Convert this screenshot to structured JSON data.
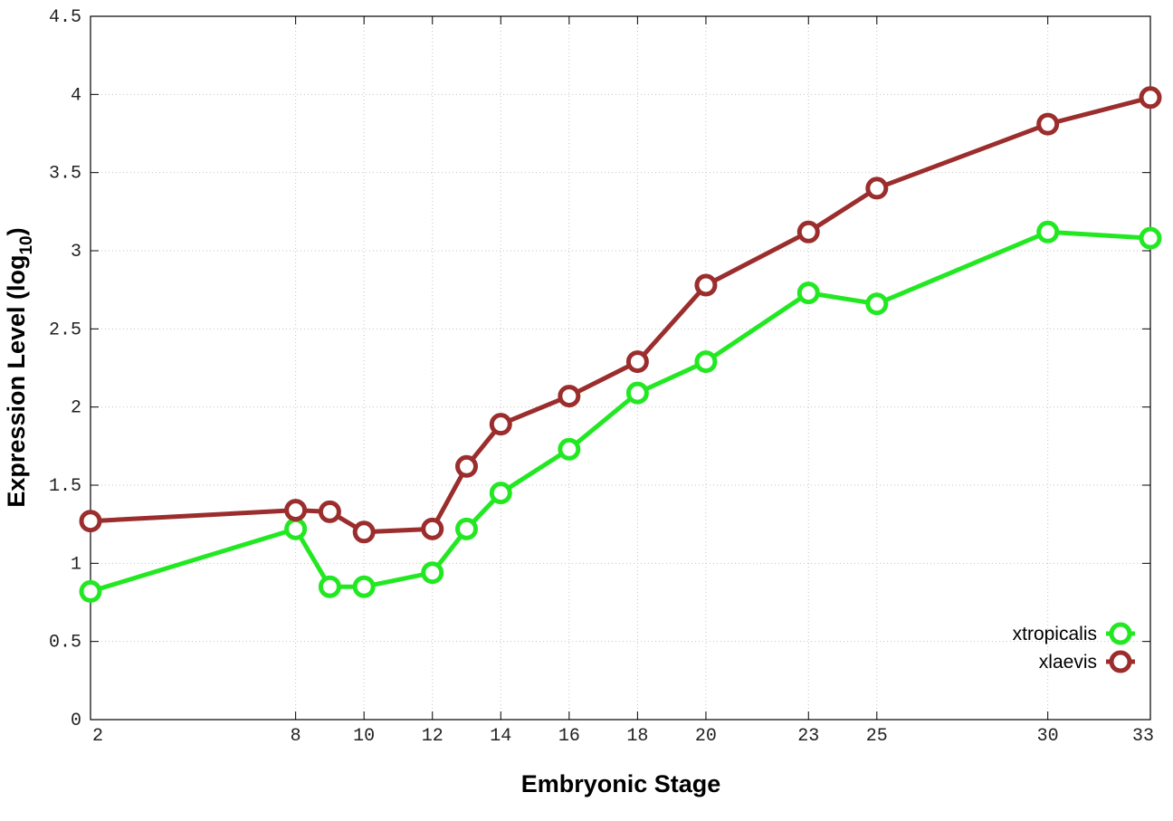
{
  "chart_data": {
    "type": "line",
    "xlabel": "Embryonic Stage",
    "ylabel": "Expression Level (log",
    "ylabel_sub": "10",
    "ylabel_close": ")",
    "x_ticks": [
      "2",
      "8",
      "10",
      "12",
      "14",
      "16",
      "18",
      "20",
      "23",
      "25",
      "30",
      "33"
    ],
    "x": [
      2,
      8,
      9,
      10,
      12,
      13,
      14,
      16,
      18,
      20,
      23,
      25,
      30,
      33
    ],
    "y_ticks": [
      "0",
      "0.5",
      "1",
      "1.5",
      "2",
      "2.5",
      "3",
      "3.5",
      "4",
      "4.5"
    ],
    "ylim": [
      0,
      4.5
    ],
    "grid": true,
    "legend_position": "bottom-right",
    "series": [
      {
        "name": "xtropicalis",
        "color": "#22e822",
        "values": [
          0.82,
          1.22,
          0.85,
          0.85,
          0.94,
          1.22,
          1.45,
          1.73,
          2.09,
          2.29,
          2.73,
          2.66,
          3.12,
          3.08
        ]
      },
      {
        "name": "xlaevis",
        "color": "#9b2d2d",
        "values": [
          1.27,
          1.34,
          1.33,
          1.2,
          1.22,
          1.62,
          1.89,
          2.07,
          2.29,
          2.78,
          3.12,
          3.4,
          3.81,
          3.98
        ]
      }
    ]
  }
}
